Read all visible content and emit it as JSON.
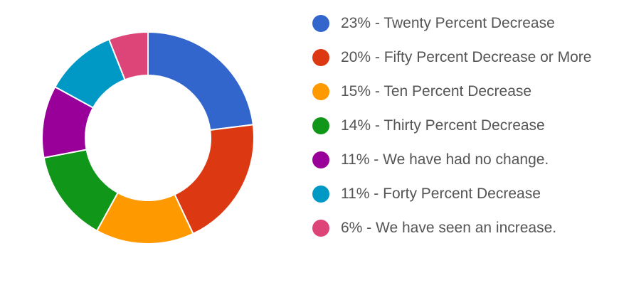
{
  "chart_data": {
    "type": "pie",
    "donut": true,
    "legend_position": "right",
    "slices": [
      {
        "label": "23% - Twenty Percent Decrease",
        "value": 23,
        "color": "#3366CC"
      },
      {
        "label": "20% - Fifty Percent Decrease or More",
        "value": 20,
        "color": "#DC3912"
      },
      {
        "label": "15% - Ten Percent Decrease",
        "value": 15,
        "color": "#FF9900"
      },
      {
        "label": "14% - Thirty Percent Decrease",
        "value": 14,
        "color": "#109618"
      },
      {
        "label": "11% - We have had no change.",
        "value": 11,
        "color": "#990099"
      },
      {
        "label": "11% - Forty Percent Decrease",
        "value": 11,
        "color": "#0099C6"
      },
      {
        "label": "6% - We have seen an increase.",
        "value": 6,
        "color": "#DD4477"
      }
    ]
  }
}
